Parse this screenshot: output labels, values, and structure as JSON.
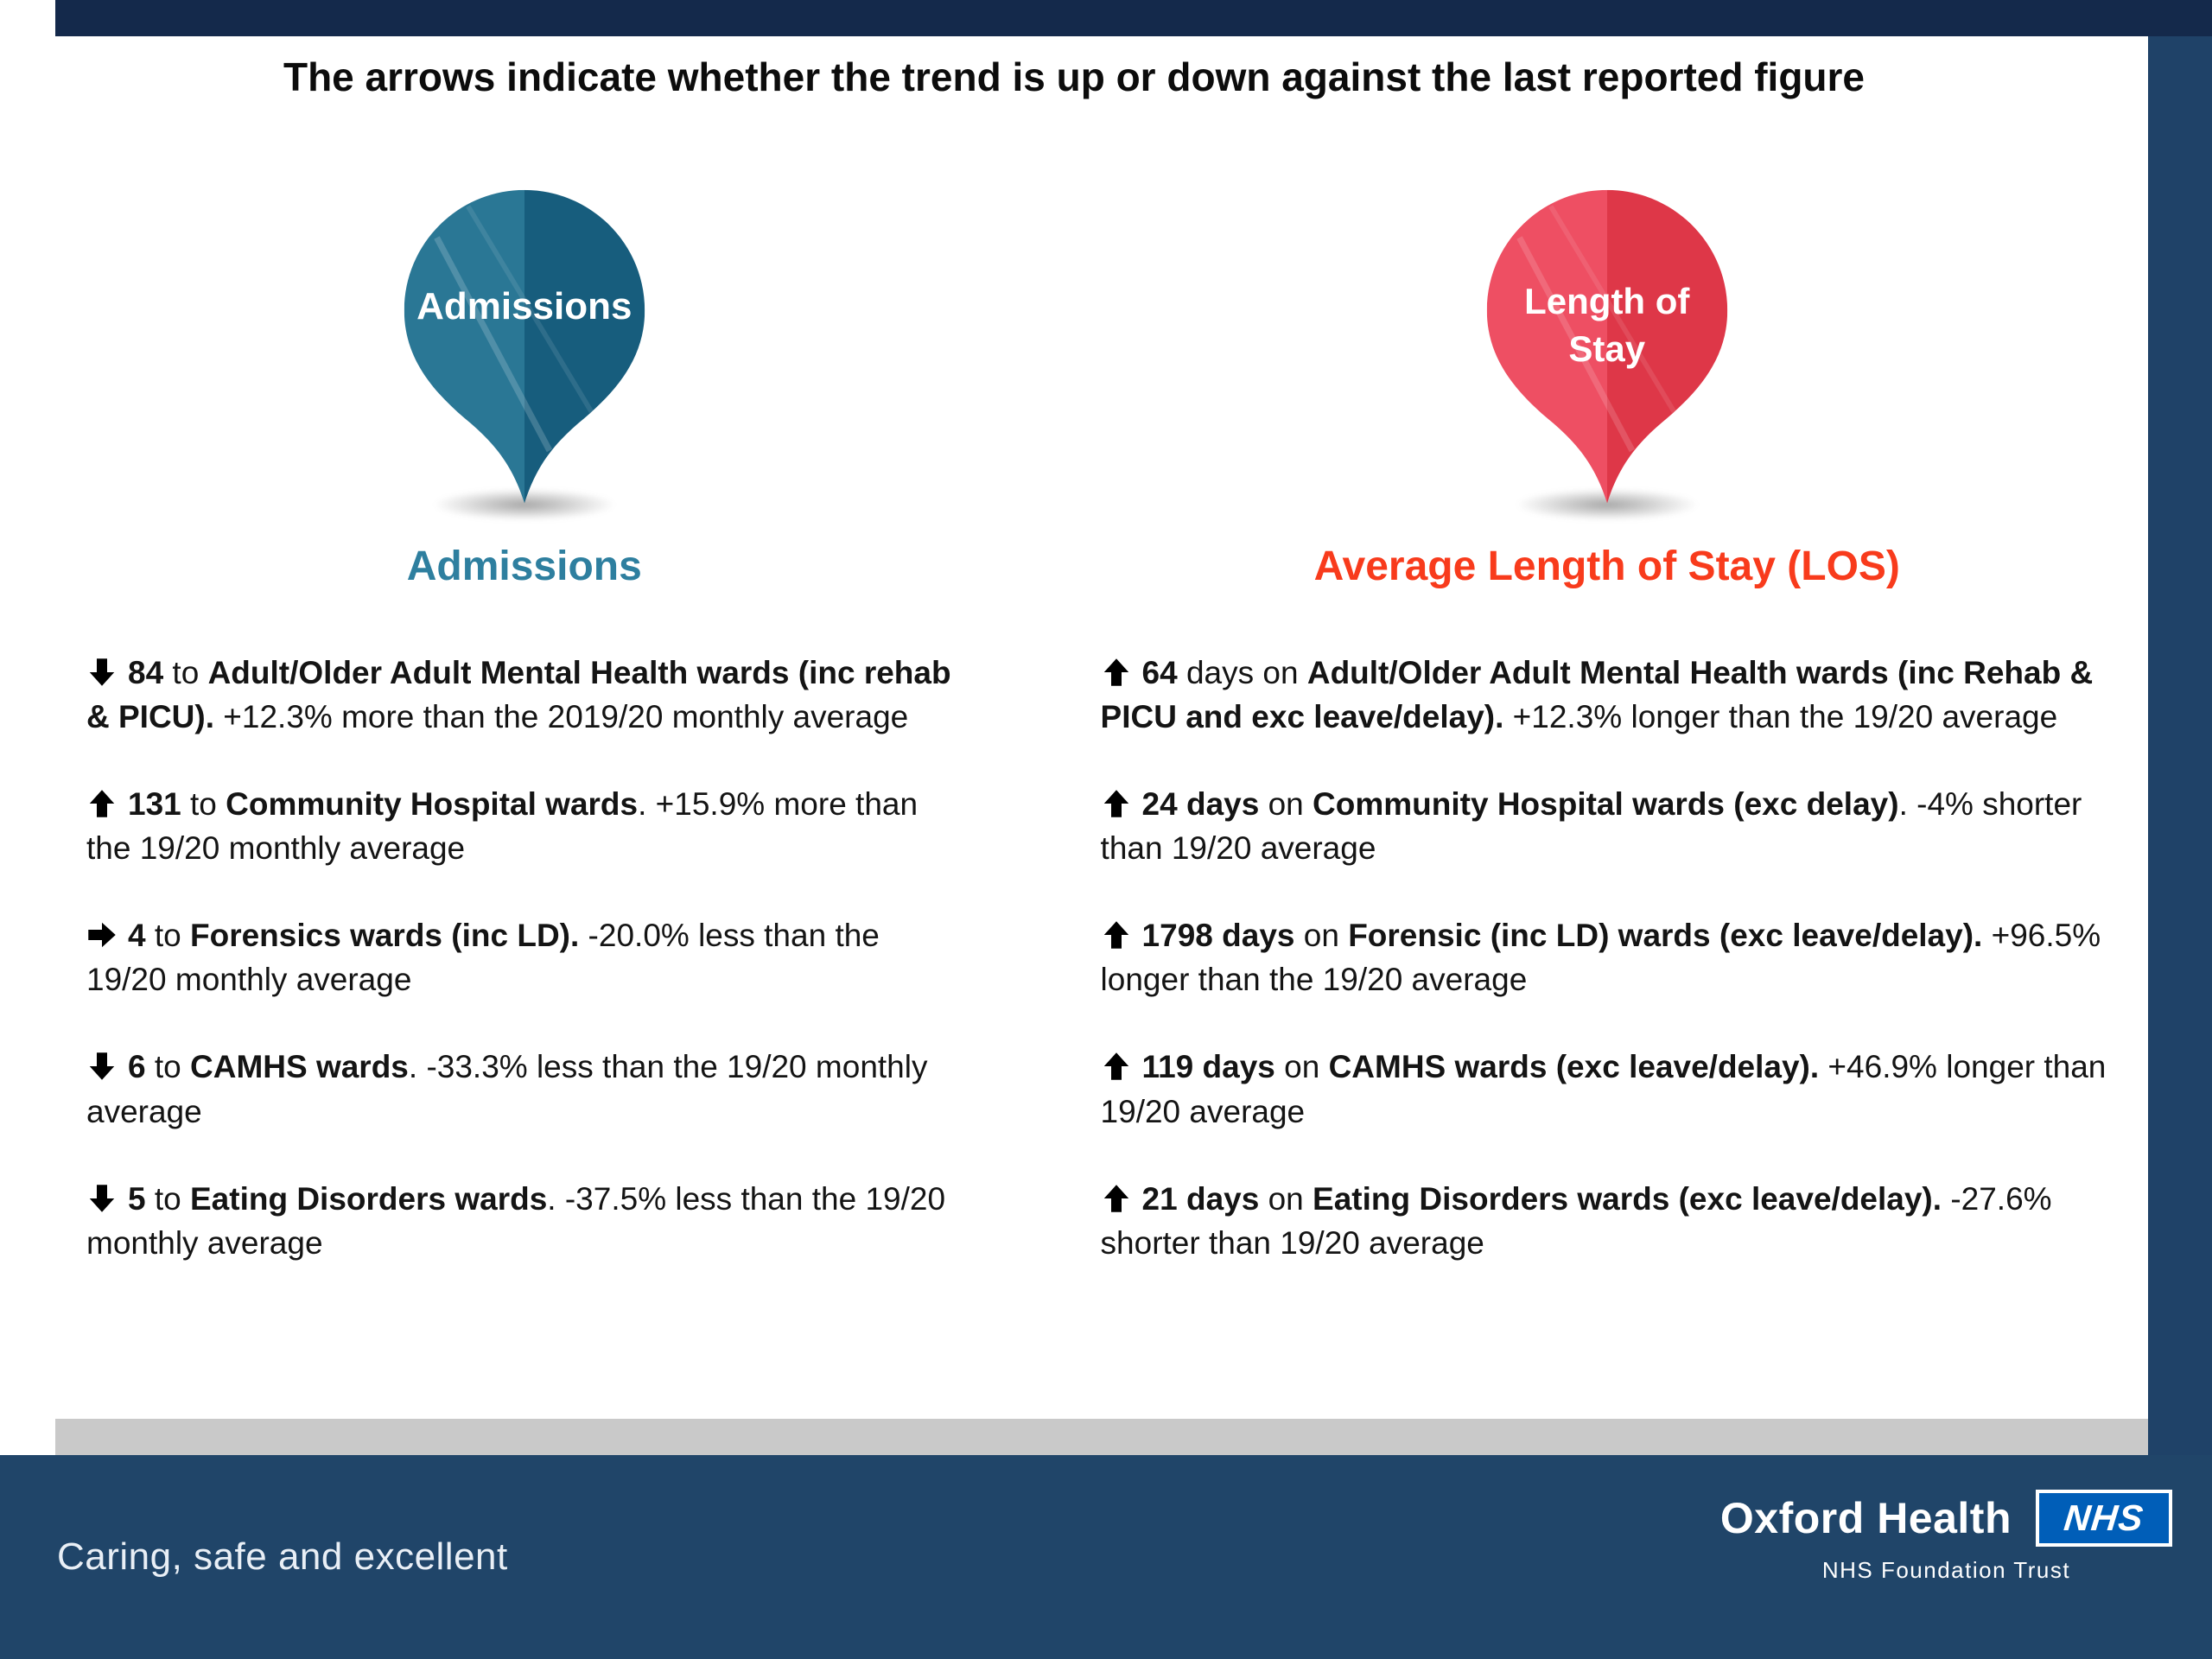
{
  "title": "The arrows indicate whether the trend is up or down against the last reported figure",
  "left": {
    "pin_label": "Admissions",
    "heading": "Admissions",
    "items": [
      {
        "arrow": "down",
        "segments": [
          {
            "t": "84",
            "b": true
          },
          {
            "t": " to ",
            "b": false
          },
          {
            "t": "Adult/Older Adult Mental Health wards (inc rehab & PICU).",
            "b": true
          },
          {
            "t": "  +12.3% more than the 2019/20 monthly average",
            "b": false
          }
        ]
      },
      {
        "arrow": "up",
        "segments": [
          {
            "t": "131",
            "b": true
          },
          {
            "t": " to ",
            "b": false
          },
          {
            "t": "Community Hospital wards",
            "b": true
          },
          {
            "t": ". +15.9% more than the 19/20 monthly average",
            "b": false
          }
        ]
      },
      {
        "arrow": "right",
        "segments": [
          {
            "t": "4",
            "b": true
          },
          {
            "t": " to ",
            "b": false
          },
          {
            "t": "Forensics wards (inc LD).",
            "b": true
          },
          {
            "t": "  -20.0% less than the 19/20 monthly average",
            "b": false
          }
        ]
      },
      {
        "arrow": "down",
        "segments": [
          {
            "t": "6",
            "b": true
          },
          {
            "t": "  to ",
            "b": false
          },
          {
            "t": "CAMHS wards",
            "b": true
          },
          {
            "t": ". -33.3% less than the 19/20 monthly average",
            "b": false
          }
        ]
      },
      {
        "arrow": "down",
        "segments": [
          {
            "t": "5",
            "b": true
          },
          {
            "t": " to ",
            "b": false
          },
          {
            "t": "Eating Disorders wards",
            "b": true
          },
          {
            "t": ". -37.5% less than the 19/20 monthly average",
            "b": false
          }
        ]
      }
    ]
  },
  "right": {
    "pin_label_line1": "Length of",
    "pin_label_line2": "Stay",
    "heading": "Average Length of Stay (LOS)",
    "items": [
      {
        "arrow": "up",
        "segments": [
          {
            "t": "64",
            "b": true
          },
          {
            "t": " days on ",
            "b": false
          },
          {
            "t": "Adult/Older Adult Mental Health wards (inc Rehab & PICU and exc leave/delay).",
            "b": true
          },
          {
            "t": " +12.3% longer than the 19/20 average",
            "b": false
          }
        ]
      },
      {
        "arrow": "up",
        "segments": [
          {
            "t": "24 days",
            "b": true
          },
          {
            "t": " on ",
            "b": false
          },
          {
            "t": "Community Hospital wards (exc delay)",
            "b": true
          },
          {
            "t": ". -4% shorter than 19/20 average",
            "b": false
          }
        ]
      },
      {
        "arrow": "up",
        "segments": [
          {
            "t": "1798 days",
            "b": true
          },
          {
            "t": " on ",
            "b": false
          },
          {
            "t": "Forensic (inc LD) wards (exc leave/delay).",
            "b": true
          },
          {
            "t": " +96.5% longer than the 19/20 average",
            "b": false
          }
        ]
      },
      {
        "arrow": "up",
        "segments": [
          {
            "t": "119 days",
            "b": true
          },
          {
            "t": " on ",
            "b": false
          },
          {
            "t": "CAMHS wards (exc leave/delay).",
            "b": true
          },
          {
            "t": " +46.9% longer than 19/20 average",
            "b": false
          }
        ]
      },
      {
        "arrow": "up",
        "segments": [
          {
            "t": "21 days",
            "b": true
          },
          {
            "t": " on ",
            "b": false
          },
          {
            "t": "Eating Disorders wards (exc leave/delay).",
            "b": true
          },
          {
            "t": " -27.6% shorter than 19/20 average",
            "b": false
          }
        ]
      }
    ]
  },
  "footer": {
    "tagline": "Caring, safe and excellent",
    "org": "Oxford Health",
    "nhs_logo": "NHS",
    "org_sub": "NHS Foundation Trust"
  },
  "colors": {
    "bar_navy": "#14294b",
    "strip_navy": "#1f4268",
    "footer_navy": "#204569",
    "gray_strip": "#c9c9c9",
    "teal_heading": "#2e7f9f",
    "red_heading": "#f83b1c",
    "pin_teal_light": "#2a7795",
    "pin_teal_dark": "#175d7d",
    "pin_red_light": "#ee4f63",
    "pin_red_dark": "#de3748",
    "nhs_blue": "#005EB8"
  }
}
